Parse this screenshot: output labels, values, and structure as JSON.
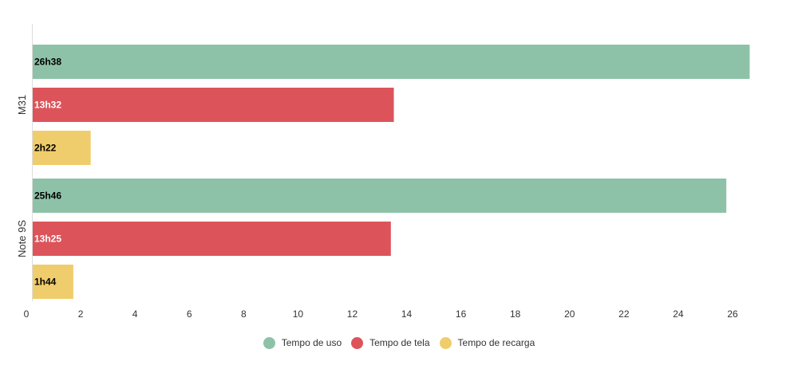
{
  "chart_data": {
    "type": "bar",
    "orientation": "horizontal",
    "categories": [
      "M31",
      "Note 9S"
    ],
    "series": [
      {
        "name": "Tempo de uso",
        "color": "#8ec2a8",
        "label_color": "#000000",
        "values": [
          26.63,
          25.77
        ],
        "labels": [
          "26h38",
          "25h46"
        ]
      },
      {
        "name": "Tempo de tela",
        "color": "#dc545a",
        "label_color": "#ffffff",
        "values": [
          13.53,
          13.42
        ],
        "labels": [
          "13h32",
          "13h25"
        ]
      },
      {
        "name": "Tempo de recarga",
        "color": "#f0cd6c",
        "label_color": "#000000",
        "values": [
          2.37,
          1.73
        ],
        "labels": [
          "2h22",
          "1h44"
        ]
      }
    ],
    "xlim": [
      0,
      26
    ],
    "xticks": [
      0,
      2,
      4,
      6,
      8,
      10,
      12,
      14,
      16,
      18,
      20,
      22,
      24,
      26
    ],
    "title": "",
    "xlabel": "",
    "ylabel": "",
    "grid": false,
    "legend_position": "bottom-center"
  }
}
